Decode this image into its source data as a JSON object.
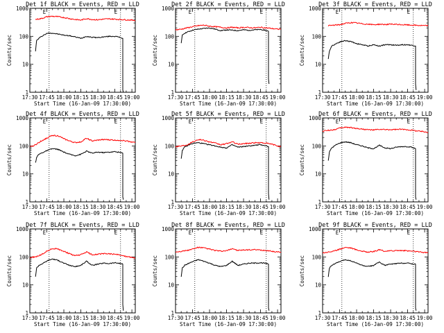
{
  "figure": {
    "xlabel": "Start Time (16-Jan-09 17:30:00)",
    "ylabel": "Counts/sec",
    "x_ticks": [
      "17:30",
      "17:45",
      "18:00",
      "18:15",
      "18:30",
      "18:45",
      "19:00"
    ],
    "y_ticks": [
      "1",
      "10",
      "100",
      "1000"
    ],
    "marker_labels": [
      "E",
      "E"
    ],
    "colors": {
      "events": "#000000",
      "lld": "#ff0000",
      "background": "#ffffff"
    }
  },
  "chart_data": [
    {
      "type": "line",
      "title": "Det 1f BLACK = Events, RED = LLD",
      "xlabel": "Start Time (16-Jan-09 17:30:00)",
      "ylabel": "Counts/sec",
      "x_unit": "minutes after 17:30",
      "xlim": [
        0,
        93
      ],
      "ylim": [
        1,
        1000
      ],
      "y_log": true,
      "markers_x": [
        17,
        80
      ],
      "series": [
        {
          "name": "Events",
          "color": "#000000",
          "x": [
            5,
            6,
            8,
            12,
            16,
            20,
            25,
            30,
            35,
            40,
            45,
            50,
            55,
            60,
            65,
            70,
            75,
            78,
            80,
            82,
            82,
            82.5
          ],
          "y": [
            30,
            70,
            85,
            110,
            130,
            130,
            120,
            110,
            105,
            95,
            85,
            100,
            92,
            90,
            95,
            100,
            100,
            95,
            90,
            85,
            1.2,
            1
          ]
        },
        {
          "name": "LLD",
          "color": "#ff0000",
          "x": [
            5,
            10,
            15,
            20,
            25,
            30,
            35,
            40,
            45,
            50,
            55,
            60,
            65,
            70,
            75,
            80,
            85,
            90,
            93
          ],
          "y": [
            400,
            430,
            500,
            520,
            500,
            470,
            430,
            400,
            380,
            430,
            400,
            390,
            410,
            420,
            410,
            400,
            390,
            380,
            370
          ]
        }
      ]
    },
    {
      "type": "line",
      "title": "Det 2f BLACK = Events, RED = LLD",
      "xlabel": "Start Time (16-Jan-09 17:30:00)",
      "ylabel": "Counts/sec",
      "x_unit": "minutes after 17:30",
      "xlim": [
        0,
        93
      ],
      "ylim": [
        1,
        1000
      ],
      "y_log": true,
      "markers_x": [
        17,
        80
      ],
      "series": [
        {
          "name": "Events",
          "color": "#000000",
          "x": [
            5,
            6,
            8,
            12,
            16,
            20,
            25,
            30,
            35,
            40,
            45,
            50,
            55,
            60,
            65,
            70,
            75,
            78,
            80,
            82,
            82,
            82.5
          ],
          "y": [
            55,
            110,
            130,
            150,
            170,
            180,
            190,
            200,
            180,
            160,
            170,
            165,
            160,
            170,
            165,
            170,
            175,
            170,
            160,
            150,
            3,
            2
          ]
        },
        {
          "name": "LLD",
          "color": "#ff0000",
          "x": [
            0,
            5,
            10,
            15,
            20,
            25,
            30,
            35,
            40,
            45,
            50,
            55,
            60,
            65,
            70,
            75,
            80,
            85,
            90,
            93
          ],
          "y": [
            170,
            180,
            200,
            220,
            240,
            250,
            230,
            220,
            210,
            200,
            210,
            200,
            210,
            205,
            200,
            210,
            200,
            190,
            180,
            180
          ]
        }
      ]
    },
    {
      "type": "line",
      "title": "Det 3f BLACK = Events, RED = LLD",
      "xlabel": "Start Time (16-Jan-09 17:30:00)",
      "ylabel": "Counts/sec",
      "x_unit": "minutes after 17:30",
      "xlim": [
        0,
        93
      ],
      "ylim": [
        1,
        1000
      ],
      "y_log": true,
      "markers_x": [
        17,
        80
      ],
      "series": [
        {
          "name": "Events",
          "color": "#000000",
          "x": [
            5,
            6,
            8,
            12,
            16,
            20,
            25,
            30,
            35,
            40,
            45,
            50,
            55,
            60,
            65,
            70,
            75,
            78,
            80,
            82,
            82,
            82.5
          ],
          "y": [
            15,
            30,
            45,
            55,
            65,
            70,
            65,
            55,
            50,
            45,
            50,
            45,
            50,
            50,
            48,
            50,
            50,
            48,
            47,
            45,
            2,
            1.2
          ]
        },
        {
          "name": "LLD",
          "color": "#ff0000",
          "x": [
            5,
            10,
            15,
            20,
            25,
            30,
            35,
            40,
            45,
            50,
            55,
            60,
            65,
            70,
            75,
            80,
            85,
            90,
            93
          ],
          "y": [
            240,
            250,
            260,
            290,
            310,
            300,
            280,
            270,
            260,
            270,
            265,
            270,
            265,
            260,
            255,
            250,
            245,
            240,
            240
          ]
        }
      ]
    },
    {
      "type": "line",
      "title": "Det 4f BLACK = Events, RED = LLD",
      "xlabel": "Start Time (16-Jan-09 17:30:00)",
      "ylabel": "Counts/sec",
      "x_unit": "minutes after 17:30",
      "xlim": [
        0,
        93
      ],
      "ylim": [
        1,
        1000
      ],
      "y_log": true,
      "markers_x": [
        17,
        80
      ],
      "series": [
        {
          "name": "Events",
          "color": "#000000",
          "x": [
            5,
            6,
            8,
            12,
            16,
            20,
            25,
            30,
            35,
            40,
            45,
            50,
            55,
            60,
            65,
            70,
            75,
            78,
            80,
            82,
            82,
            82.5
          ],
          "y": [
            25,
            40,
            50,
            60,
            70,
            80,
            75,
            60,
            50,
            45,
            50,
            65,
            55,
            60,
            58,
            60,
            62,
            60,
            58,
            55,
            1.5,
            1.2
          ]
        },
        {
          "name": "LLD",
          "color": "#ff0000",
          "x": [
            0,
            5,
            10,
            15,
            20,
            25,
            30,
            35,
            40,
            45,
            50,
            55,
            60,
            65,
            70,
            75,
            80,
            85,
            90,
            93
          ],
          "y": [
            90,
            110,
            150,
            190,
            240,
            230,
            180,
            150,
            130,
            140,
            190,
            150,
            160,
            170,
            165,
            160,
            160,
            150,
            140,
            130
          ]
        }
      ]
    },
    {
      "type": "line",
      "title": "Det 5f BLACK = Events, RED = LLD",
      "xlabel": "Start Time (16-Jan-09 17:30:00)",
      "ylabel": "Counts/sec",
      "x_unit": "minutes after 17:30",
      "xlim": [
        0,
        93
      ],
      "ylim": [
        1,
        1000
      ],
      "y_log": true,
      "markers_x": [
        17,
        80
      ],
      "series": [
        {
          "name": "Events",
          "color": "#000000",
          "x": [
            5,
            6,
            8,
            12,
            16,
            20,
            25,
            30,
            35,
            40,
            45,
            50,
            55,
            60,
            65,
            70,
            75,
            78,
            80,
            82,
            82,
            82.5
          ],
          "y": [
            35,
            70,
            90,
            110,
            125,
            130,
            120,
            110,
            100,
            90,
            85,
            110,
            90,
            95,
            100,
            105,
            110,
            105,
            100,
            95,
            2,
            1.2
          ]
        },
        {
          "name": "LLD",
          "color": "#ff0000",
          "x": [
            0,
            5,
            10,
            15,
            20,
            25,
            30,
            35,
            40,
            45,
            50,
            55,
            60,
            65,
            70,
            75,
            80,
            85,
            90,
            93
          ],
          "y": [
            95,
            100,
            110,
            140,
            170,
            160,
            140,
            125,
            110,
            120,
            140,
            115,
            120,
            125,
            130,
            130,
            125,
            115,
            100,
            95
          ]
        }
      ]
    },
    {
      "type": "line",
      "title": "Det 6f BLACK = Events, RED = LLD",
      "xlabel": "Start Time (16-Jan-09 17:30:00)",
      "ylabel": "Counts/sec",
      "x_unit": "minutes after 17:30",
      "xlim": [
        0,
        93
      ],
      "ylim": [
        1,
        1000
      ],
      "y_log": true,
      "markers_x": [
        17,
        80
      ],
      "series": [
        {
          "name": "Events",
          "color": "#000000",
          "x": [
            5,
            6,
            8,
            12,
            16,
            20,
            25,
            30,
            35,
            40,
            45,
            50,
            55,
            60,
            65,
            70,
            75,
            78,
            80,
            82,
            82,
            82.5
          ],
          "y": [
            30,
            60,
            85,
            110,
            130,
            140,
            130,
            110,
            100,
            85,
            80,
            105,
            85,
            80,
            90,
            95,
            95,
            90,
            85,
            80,
            1.5,
            1.2
          ]
        },
        {
          "name": "LLD",
          "color": "#ff0000",
          "x": [
            0,
            5,
            10,
            15,
            20,
            25,
            30,
            35,
            40,
            45,
            50,
            55,
            60,
            65,
            70,
            75,
            80,
            85,
            90,
            93
          ],
          "y": [
            340,
            360,
            380,
            430,
            470,
            450,
            420,
            400,
            380,
            370,
            390,
            380,
            380,
            385,
            390,
            380,
            360,
            340,
            320,
            310
          ]
        }
      ]
    },
    {
      "type": "line",
      "title": "Det 7f BLACK = Events, RED = LLD",
      "xlabel": "Start Time (16-Jan-09 17:30:00)",
      "ylabel": "Counts/sec",
      "x_unit": "minutes after 17:30",
      "xlim": [
        0,
        93
      ],
      "ylim": [
        1,
        1000
      ],
      "y_log": true,
      "markers_x": [
        17,
        80
      ],
      "series": [
        {
          "name": "Events",
          "color": "#000000",
          "x": [
            5,
            6,
            8,
            12,
            16,
            20,
            25,
            30,
            35,
            40,
            45,
            50,
            55,
            60,
            65,
            70,
            75,
            78,
            80,
            82,
            82,
            82.5
          ],
          "y": [
            20,
            40,
            50,
            60,
            75,
            85,
            75,
            60,
            50,
            45,
            50,
            70,
            50,
            55,
            60,
            58,
            62,
            60,
            58,
            55,
            2,
            1.2
          ]
        },
        {
          "name": "LLD",
          "color": "#ff0000",
          "x": [
            0,
            5,
            10,
            15,
            20,
            25,
            30,
            35,
            40,
            45,
            50,
            55,
            60,
            65,
            70,
            75,
            80,
            85,
            90,
            93
          ],
          "y": [
            95,
            100,
            120,
            160,
            200,
            190,
            160,
            130,
            110,
            120,
            150,
            120,
            125,
            130,
            130,
            125,
            115,
            105,
            95,
            90
          ]
        }
      ]
    },
    {
      "type": "line",
      "title": "Det 8f BLACK = Events, RED = LLD",
      "xlabel": "Start Time (16-Jan-09 17:30:00)",
      "ylabel": "Counts/sec",
      "x_unit": "minutes after 17:30",
      "xlim": [
        0,
        93
      ],
      "ylim": [
        1,
        1000
      ],
      "y_log": true,
      "markers_x": [
        17,
        80
      ],
      "series": [
        {
          "name": "Events",
          "color": "#000000",
          "x": [
            5,
            6,
            8,
            12,
            16,
            20,
            25,
            30,
            35,
            40,
            45,
            50,
            55,
            60,
            65,
            70,
            75,
            78,
            80,
            82,
            82,
            82.5
          ],
          "y": [
            20,
            40,
            50,
            60,
            70,
            80,
            70,
            60,
            50,
            45,
            50,
            70,
            50,
            55,
            60,
            60,
            62,
            60,
            58,
            55,
            1.5,
            1.2
          ]
        },
        {
          "name": "LLD",
          "color": "#ff0000",
          "x": [
            0,
            5,
            10,
            15,
            20,
            25,
            30,
            35,
            40,
            45,
            50,
            55,
            60,
            65,
            70,
            75,
            80,
            85,
            90,
            93
          ],
          "y": [
            150,
            160,
            170,
            190,
            220,
            210,
            190,
            170,
            160,
            165,
            200,
            170,
            175,
            180,
            180,
            175,
            170,
            160,
            150,
            150
          ]
        }
      ]
    },
    {
      "type": "line",
      "title": "Det 9f BLACK = Events, RED = LLD",
      "xlabel": "Start Time (16-Jan-09 17:30:00)",
      "ylabel": "Counts/sec",
      "x_unit": "minutes after 17:30",
      "xlim": [
        0,
        93
      ],
      "ylim": [
        1,
        1000
      ],
      "y_log": true,
      "markers_x": [
        17,
        80
      ],
      "series": [
        {
          "name": "Events",
          "color": "#000000",
          "x": [
            5,
            6,
            8,
            12,
            16,
            20,
            25,
            30,
            35,
            40,
            45,
            50,
            55,
            60,
            65,
            70,
            75,
            78,
            80,
            82,
            82,
            82.5
          ],
          "y": [
            20,
            40,
            50,
            60,
            70,
            80,
            72,
            60,
            50,
            45,
            50,
            65,
            50,
            55,
            58,
            60,
            60,
            58,
            56,
            55,
            1.5,
            1.2
          ]
        },
        {
          "name": "LLD",
          "color": "#ff0000",
          "x": [
            0,
            5,
            10,
            15,
            20,
            25,
            30,
            35,
            40,
            45,
            50,
            55,
            60,
            65,
            70,
            75,
            80,
            85,
            90,
            93
          ],
          "y": [
            140,
            150,
            160,
            190,
            220,
            210,
            180,
            160,
            150,
            155,
            180,
            160,
            165,
            170,
            170,
            165,
            160,
            150,
            145,
            140
          ]
        }
      ]
    }
  ]
}
